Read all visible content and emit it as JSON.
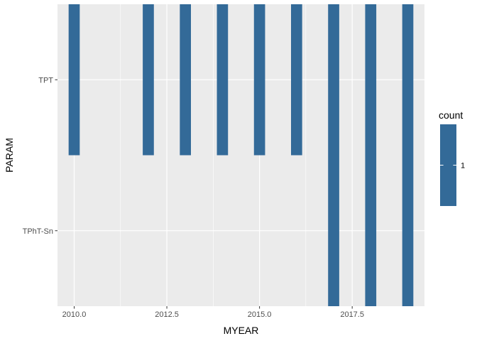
{
  "chart_data": {
    "type": "heatmap",
    "xlabel": "MYEAR",
    "ylabel": "PARAM",
    "x_ticks": [
      2010.0,
      2012.5,
      2015.0,
      2017.5
    ],
    "x_tick_labels": [
      "2010.0",
      "2012.5",
      "2015.0",
      "2017.5"
    ],
    "xlim": [
      2009.55,
      2019.45
    ],
    "y_categories": [
      "TPT",
      "TPhT-Sn"
    ],
    "tile_width": 0.3,
    "cells": [
      {
        "x": 2010,
        "y": "TPT",
        "count": 1
      },
      {
        "x": 2012,
        "y": "TPT",
        "count": 1
      },
      {
        "x": 2013,
        "y": "TPT",
        "count": 1
      },
      {
        "x": 2014,
        "y": "TPT",
        "count": 1
      },
      {
        "x": 2015,
        "y": "TPT",
        "count": 1
      },
      {
        "x": 2016,
        "y": "TPT",
        "count": 1
      },
      {
        "x": 2017,
        "y": "TPT",
        "count": 1
      },
      {
        "x": 2017,
        "y": "TPhT-Sn",
        "count": 1
      },
      {
        "x": 2018,
        "y": "TPT",
        "count": 1
      },
      {
        "x": 2018,
        "y": "TPhT-Sn",
        "count": 1
      },
      {
        "x": 2019,
        "y": "TPT",
        "count": 1
      },
      {
        "x": 2019,
        "y": "TPhT-Sn",
        "count": 1
      }
    ],
    "legend": {
      "title": "count",
      "labels": [
        "1"
      ],
      "position": "right"
    },
    "grid": true,
    "colors": {
      "fill": "#336A98",
      "panel": "#EBEBEB",
      "grid": "#FFFFFF"
    }
  }
}
